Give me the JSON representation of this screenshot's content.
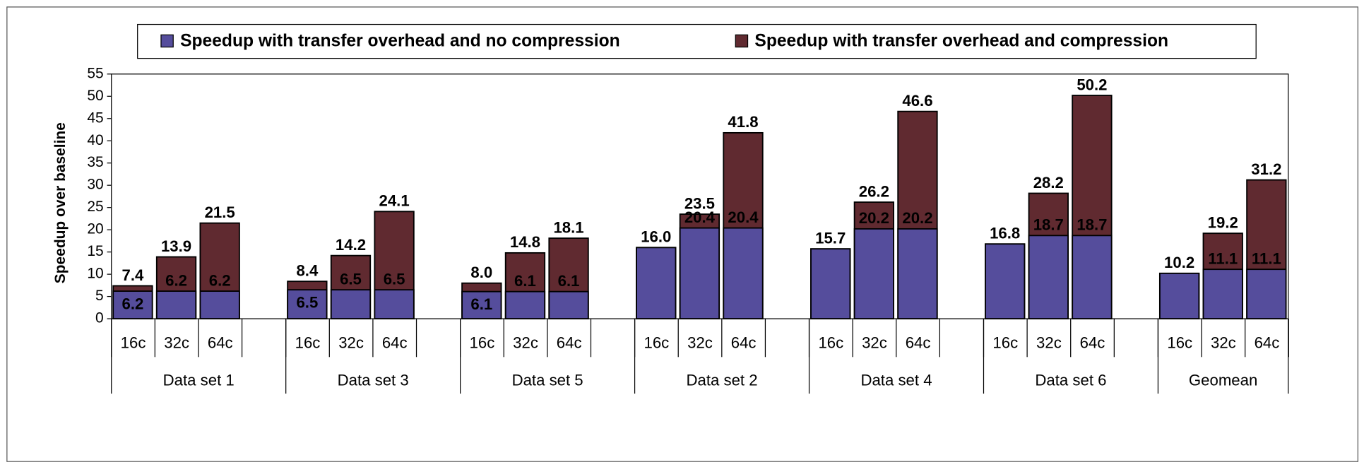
{
  "chart_data": {
    "type": "bar",
    "y_label": "Speedup over baseline",
    "legend": "top",
    "groups": [
      "Data set 1",
      "Data set 3",
      "Data set 5",
      "Data set 2",
      "Data set 4",
      "Data set 6",
      "Geomean"
    ],
    "categories": [
      "16c",
      "32c",
      "64c",
      "16c",
      "32c",
      "64c",
      "16c",
      "32c",
      "64c",
      "16c",
      "32c",
      "64c",
      "16c",
      "32c",
      "64c",
      "16c",
      "32c",
      "64c",
      "16c",
      "32c",
      "64c"
    ],
    "series": [
      {
        "name": "Speedup with transfer overhead and compression",
        "color": "#602a30",
        "values": [
          7.4,
          13.9,
          21.5,
          8.4,
          14.2,
          24.1,
          8.0,
          14.8,
          18.1,
          16.0,
          23.5,
          41.8,
          15.7,
          26.2,
          46.6,
          16.8,
          28.2,
          50.2,
          10.2,
          19.2,
          31.2
        ],
        "value_labels": [
          "7.4",
          "13.9",
          "21.5",
          "8.4",
          "14.2",
          "24.1",
          "8.0",
          "14.8",
          "18.1",
          "16.0",
          "23.5",
          "41.8",
          "15.7",
          "26.2",
          "46.6",
          "16.8",
          "28.2",
          "50.2",
          "10.2",
          "19.2",
          "31.2"
        ]
      },
      {
        "name": "Speedup with transfer overhead and no compression",
        "color": "#554d9c",
        "values": [
          6.2,
          6.2,
          6.2,
          6.5,
          6.5,
          6.5,
          6.1,
          6.1,
          6.1,
          16.0,
          20.4,
          20.4,
          15.7,
          20.2,
          20.2,
          16.8,
          18.7,
          18.7,
          10.2,
          11.1,
          11.1
        ],
        "value_labels": [
          "6.2",
          "6.2",
          "6.2",
          "6.5",
          "6.5",
          "6.5",
          "6.1",
          "6.1",
          "6.1",
          "16.0",
          "20.4",
          "20.4",
          "15.7",
          "20.2",
          "20.2",
          "16.8",
          "18.7",
          "18.7",
          "10.2",
          "11.1",
          "11.1"
        ]
      }
    ],
    "legend_order": [
      1,
      0
    ],
    "ylim": [
      0,
      55
    ],
    "yticks": [
      0,
      5,
      10,
      15,
      20,
      25,
      30,
      35,
      40,
      45,
      50,
      55
    ],
    "grid": false
  }
}
